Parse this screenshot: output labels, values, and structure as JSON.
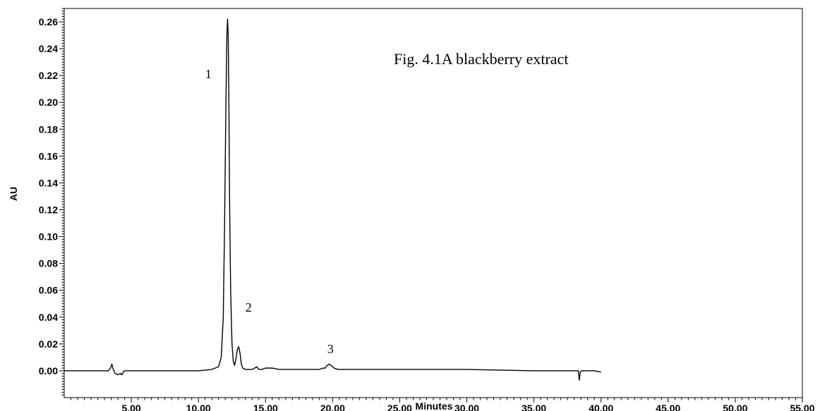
{
  "chart_data": {
    "type": "line",
    "title": "Fig. 4.1A blackberry extract",
    "xlabel": "Minutes",
    "ylabel": "AU",
    "xlim": [
      0,
      55
    ],
    "ylim": [
      -0.02,
      0.27
    ],
    "grid": false,
    "x_ticks": [
      {
        "value": 5,
        "label": "5.00"
      },
      {
        "value": 10,
        "label": "10.00"
      },
      {
        "value": 15,
        "label": "15.00"
      },
      {
        "value": 20,
        "label": "20.00"
      },
      {
        "value": 25,
        "label": "25.00"
      },
      {
        "value": 30,
        "label": "30.00"
      },
      {
        "value": 35,
        "label": "35.00"
      },
      {
        "value": 40,
        "label": "40.00"
      },
      {
        "value": 45,
        "label": "45.00"
      },
      {
        "value": 50,
        "label": "50.00"
      },
      {
        "value": 55,
        "label": "55.00"
      }
    ],
    "y_ticks": [
      {
        "value": 0.0,
        "label": "0.00"
      },
      {
        "value": 0.02,
        "label": "0.02"
      },
      {
        "value": 0.04,
        "label": "0.04"
      },
      {
        "value": 0.06,
        "label": "0.06"
      },
      {
        "value": 0.08,
        "label": "0.08"
      },
      {
        "value": 0.1,
        "label": "0.10"
      },
      {
        "value": 0.12,
        "label": "0.12"
      },
      {
        "value": 0.14,
        "label": "0.14"
      },
      {
        "value": 0.16,
        "label": "0.16"
      },
      {
        "value": 0.18,
        "label": "0.18"
      },
      {
        "value": 0.2,
        "label": "0.20"
      },
      {
        "value": 0.22,
        "label": "0.22"
      },
      {
        "value": 0.24,
        "label": "0.24"
      },
      {
        "value": 0.26,
        "label": "0.26"
      }
    ],
    "annotations": [
      {
        "text": "1",
        "x": 10.5,
        "y": 0.218
      },
      {
        "text": "2",
        "x": 13.5,
        "y": 0.044
      },
      {
        "text": "3",
        "x": 19.6,
        "y": 0.013
      }
    ],
    "series": [
      {
        "color": "#000000",
        "x": [
          0,
          3.3,
          3.45,
          3.55,
          3.65,
          3.8,
          4.0,
          4.2,
          4.3,
          4.4,
          4.5,
          4.7,
          6.0,
          8.0,
          10.0,
          11.0,
          11.5,
          11.7,
          11.85,
          11.95,
          12.05,
          12.12,
          12.17,
          12.22,
          12.27,
          12.32,
          12.4,
          12.5,
          12.6,
          12.7,
          12.8,
          12.9,
          13.0,
          13.1,
          13.2,
          13.3,
          13.5,
          14.0,
          14.2,
          14.35,
          14.5,
          14.7,
          15.0,
          15.5,
          16.0,
          17.0,
          18.0,
          19.0,
          19.3,
          19.45,
          19.6,
          19.75,
          19.9,
          20.1,
          20.4,
          21.0,
          25.0,
          30.0,
          35.0,
          38.0,
          38.3,
          38.38,
          38.45,
          38.55,
          38.8,
          39.5,
          40.0
        ],
        "y": [
          0.0,
          0.0,
          0.002,
          0.005,
          0.001,
          -0.002,
          -0.003,
          -0.002,
          -0.003,
          -0.001,
          0.0,
          0.0,
          0.0,
          0.0,
          0.0,
          0.001,
          0.003,
          0.01,
          0.04,
          0.11,
          0.2,
          0.25,
          0.262,
          0.25,
          0.2,
          0.13,
          0.06,
          0.02,
          0.007,
          0.004,
          0.009,
          0.016,
          0.018,
          0.013,
          0.005,
          0.002,
          0.001,
          0.001,
          0.002,
          0.003,
          0.001,
          0.001,
          0.002,
          0.002,
          0.001,
          0.001,
          0.001,
          0.001,
          0.002,
          0.002,
          0.004,
          0.005,
          0.004,
          0.002,
          0.001,
          0.001,
          0.001,
          0.001,
          0.0,
          0.0,
          0.0,
          -0.007,
          -0.001,
          0.0,
          0.0,
          0.0,
          -0.001
        ]
      }
    ]
  }
}
